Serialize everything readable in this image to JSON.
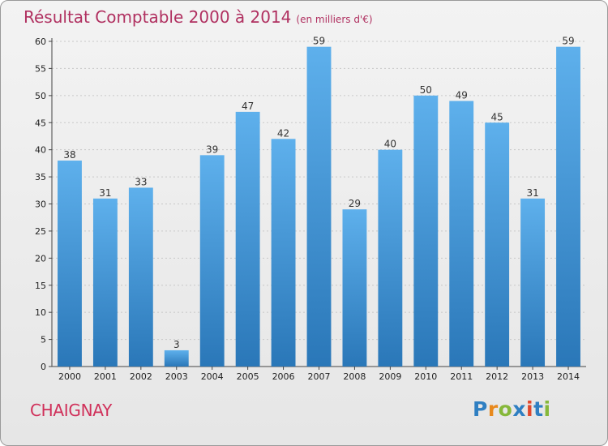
{
  "header": {
    "title": "Résultat Comptable 2000 à 2014",
    "unit": "(en milliers d'€)"
  },
  "location": "CHAIGNAY",
  "brand": {
    "letters": [
      "P",
      "r",
      "o",
      "x",
      "i",
      "t",
      "i"
    ],
    "colors": [
      "#2f7fc2",
      "#e8891d",
      "#86b83a",
      "#2f7fc2",
      "#e0482d",
      "#2f7fc2",
      "#86b83a"
    ]
  },
  "chart_data": {
    "type": "bar",
    "categories": [
      "2000",
      "2001",
      "2002",
      "2003",
      "2004",
      "2005",
      "2006",
      "2007",
      "2008",
      "2009",
      "2010",
      "2011",
      "2012",
      "2013",
      "2014"
    ],
    "values": [
      38,
      31,
      33,
      3,
      39,
      47,
      42,
      59,
      29,
      40,
      50,
      49,
      45,
      31,
      59
    ],
    "title": "Résultat Comptable 2000 à 2014",
    "subtitle": "(en milliers d'€)",
    "ylim": [
      0,
      60
    ],
    "yticks": [
      0,
      5,
      10,
      15,
      20,
      25,
      30,
      35,
      40,
      45,
      50,
      55,
      60
    ],
    "grid": true,
    "bar_color": "#3a8fd6"
  }
}
